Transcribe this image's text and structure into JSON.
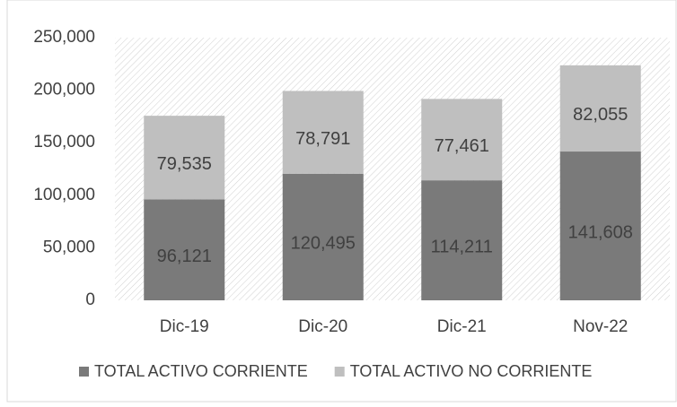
{
  "chart_data": {
    "type": "stacked_bar",
    "categories": [
      "Dic-19",
      "Dic-20",
      "Dic-21",
      "Nov-22"
    ],
    "series": [
      {
        "name": "TOTAL ACTIVO CORRIENTE",
        "color": "#7a7a7a",
        "values": [
          96121,
          120495,
          114211,
          141608
        ],
        "value_labels": [
          "96,121",
          "120,495",
          "114,211",
          "141,608"
        ]
      },
      {
        "name": "TOTAL ACTIVO NO CORRIENTE",
        "color": "#bfbfbf",
        "values": [
          79535,
          78791,
          77461,
          82055
        ],
        "value_labels": [
          "79,535",
          "78,791",
          "77,461",
          "82,055"
        ]
      }
    ],
    "ylim": [
      0,
      250000
    ],
    "yticks": [
      0,
      {
        "value": 50000,
        "label": "50,000"
      },
      {
        "value": 100000,
        "label": "100,000"
      },
      {
        "value": 150000,
        "label": "150,000"
      },
      {
        "value": 200000,
        "label": "200,000"
      },
      {
        "value": 250000,
        "label": "250,000"
      }
    ],
    "grid": false,
    "legend": "bottom"
  }
}
